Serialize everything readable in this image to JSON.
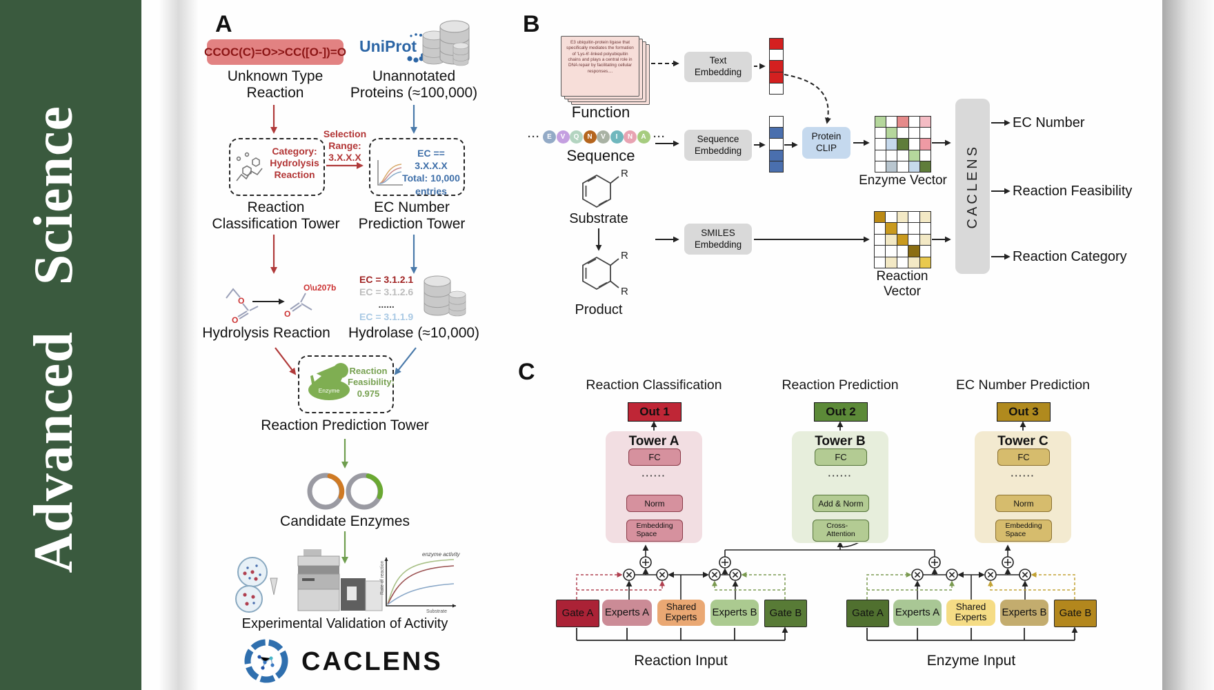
{
  "journal": {
    "name": "Advanced Science",
    "bg_color": "#3a5a3e"
  },
  "panel_a": {
    "label": "A",
    "smiles_box": "CCOC(C)=O>>CC([O-])=O",
    "unknown_reaction_label": "Unknown Type\nReaction",
    "uniprot_logo": "UniProt",
    "unannotated_label": "Unannotated\nProteins (≈100,000)",
    "classification_box_text": "Category:\nHydrolysis\nReaction",
    "selection_label": "Selection\nRange:\n3.X.X.X",
    "ec_filter_box_text": "EC == 3.X.X.X\nTotal: 10,000\nentries",
    "classification_tower_label": "Reaction\nClassification Tower",
    "ec_tower_label": "EC Number\nPrediction Tower",
    "hydrolysis_label": "Hydrolysis Reaction",
    "ec_list": [
      "EC = 3.1.2.1",
      "EC = 3.1.2.6",
      "......",
      "EC = 3.1.1.9"
    ],
    "hydrolase_label": "Hydrolase (≈10,000)",
    "enzyme_icon_label": "Enzyme",
    "feasibility_text": "Reaction\nFeasibility:\n0.975",
    "prediction_tower_label": "Reaction Prediction Tower",
    "candidate_label": "Candidate Enzymes",
    "activity_plot": {
      "ylabel": "Rate of reaction",
      "xlabel": "Substrate",
      "curve_label": "enzyme activity"
    },
    "validation_label": "Experimental Validation of Activity",
    "logo_text": "CACLENS",
    "accent_red": "#b03a3a",
    "accent_blue": "#4a7aaa",
    "accent_green": "#6f9e4f"
  },
  "panel_b": {
    "label": "B",
    "function_card_text": "E3 ubiquitin-protein ligase that specifically mediates the formation of 'Lys-6'-linked polyubiquitin chains and plays a central role in DNA repair by facilitating cellular responses....",
    "function_label": "Function",
    "ellipsis": "···",
    "sequence_letters": [
      {
        "t": "E",
        "c": "#93aac6"
      },
      {
        "t": "V",
        "c": "#c49fe0"
      },
      {
        "t": "Q",
        "c": "#b3d4c0"
      },
      {
        "t": "N",
        "c": "#b5651d"
      },
      {
        "t": "V",
        "c": "#a9b2a4"
      },
      {
        "t": "I",
        "c": "#6fb7bd"
      },
      {
        "t": "N",
        "c": "#e8a3b2"
      },
      {
        "t": "A",
        "c": "#a6cc7f"
      }
    ],
    "sequence_label": "Sequence",
    "substrate_label": "Substrate",
    "product_label": "Product",
    "r_group": "R",
    "text_embedding_label": "Text\nEmbedding",
    "sequence_embedding_label": "Sequence\nEmbedding",
    "smiles_embedding_label": "SMILES\nEmbedding",
    "protein_clip_label": "Protein\nCLIP",
    "text_vector_cells": [
      "#d42020",
      "#ffffff",
      "#d42020",
      "#d42020",
      "#ffffff"
    ],
    "sequence_vector_cells": [
      "#ffffff",
      "#4a6fae",
      "#ffffff",
      "#4a6fae",
      "#4a6fae"
    ],
    "enzyme_vector_label": "Enzyme Vector",
    "reaction_vector_label": "Reaction Vector",
    "enzyme_grid_cells": [
      "#b5d79c",
      "#ffffff",
      "#e58a8a",
      "#ffffff",
      "#f4bcc4",
      "#ffffff",
      "#b5d79c",
      "#ffffff",
      "#ffffff",
      "#ffffff",
      "#ffffff",
      "#c6d9ec",
      "#5f7d3a",
      "#ffffff",
      "#ef9aa4",
      "#ffffff",
      "#ffffff",
      "#ffffff",
      "#b5d79c",
      "#ffffff",
      "#ffffff",
      "#b9c6cf",
      "#ffffff",
      "#c6d9ec",
      "#5f7d3a"
    ],
    "reaction_grid_cells": [
      "#bb8a15",
      "#ffffff",
      "#f3e9c5",
      "#ffffff",
      "#f3e9c5",
      "#ffffff",
      "#c99a1e",
      "#ffffff",
      "#ffffff",
      "#ffffff",
      "#ffffff",
      "#f3e9c5",
      "#c99a1e",
      "#ffffff",
      "#f3e9c5",
      "#ffffff",
      "#ffffff",
      "#ffffff",
      "#8a6d12",
      "#ffffff",
      "#ffffff",
      "#f3e9c5",
      "#ffffff",
      "#f3e9c5",
      "#e9c94e"
    ],
    "caclens_label": "CACLENS",
    "outputs": [
      "EC Number",
      "Reaction Feasibility",
      "Reaction Category"
    ]
  },
  "panel_c": {
    "label": "C",
    "columns": [
      {
        "heading": "Reaction Classification",
        "out": "Out 1",
        "out_color": "#bf2636",
        "tower": "Tower A",
        "fc": "FC",
        "dots": "······",
        "mid": "Norm",
        "bottom": "Embedding\nSpace",
        "container_color": "#f2dee2",
        "box_color": "#d6919e"
      },
      {
        "heading": "Reaction Prediction",
        "out": "Out 2",
        "out_color": "#5c8a38",
        "tower": "Tower B",
        "fc": "FC",
        "dots": "······",
        "mid": "Add & Norm",
        "bottom": "Cross-\nAttention",
        "container_color": "#e7eedc",
        "box_color": "#b3cb93"
      },
      {
        "heading": "EC Number Prediction",
        "out": "Out 3",
        "out_color": "#b08a1e",
        "tower": "Tower C",
        "fc": "FC",
        "dots": "······",
        "mid": "Norm",
        "bottom": "Embedding\nSpace",
        "container_color": "#f3ead0",
        "box_color": "#d6bc6d"
      }
    ],
    "groups": [
      {
        "label": "Reaction Input",
        "boxes": [
          "Gate A",
          "Experts A",
          "Shared\nExperts",
          "Experts B",
          "Gate B"
        ],
        "colors": [
          "#ab2236",
          "#cb8b96",
          "#eaa873",
          "#abca90",
          "#587b36"
        ]
      },
      {
        "label": "Enzyme Input",
        "boxes": [
          "Gate A",
          "Experts A",
          "Shared\nExperts",
          "Experts B",
          "Gate B"
        ],
        "colors": [
          "#50702f",
          "#a9c795",
          "#f5dc85",
          "#c3ac6e",
          "#b3871d"
        ]
      }
    ]
  }
}
